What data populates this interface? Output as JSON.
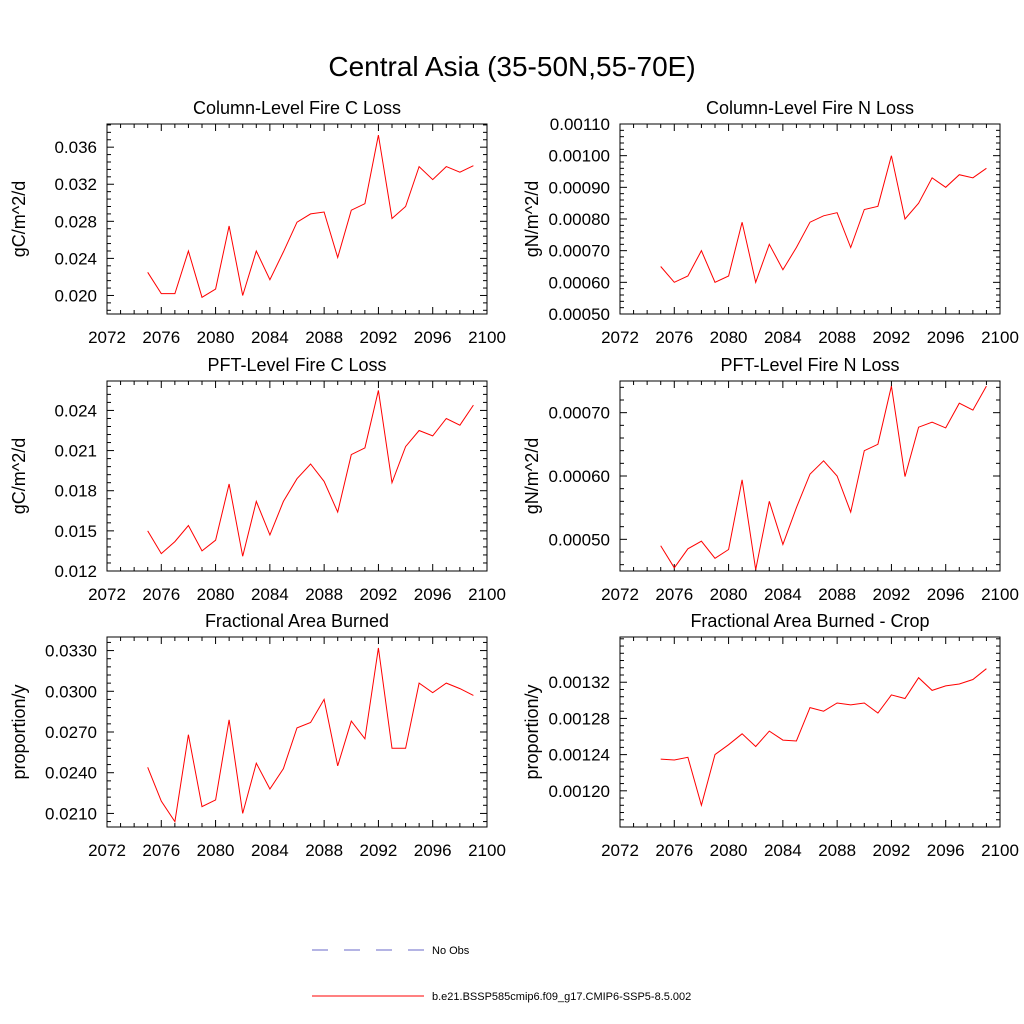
{
  "figure": {
    "title": "Central Asia (35-50N,55-70E)"
  },
  "legend": {
    "entries": [
      {
        "label": "No Obs",
        "color": "#6a6ac8",
        "dash": true
      },
      {
        "label": "b.e21.BSSP585cmip6.f09_g17.CMIP6-SSP5-8.5.002",
        "color": "#ff0000",
        "dash": false
      }
    ]
  },
  "chart_data": [
    {
      "type": "line",
      "title": "Column-Level Fire C Loss",
      "ylabel": "gC/m^2/d",
      "xlabel": "",
      "xlim": [
        2072,
        2100
      ],
      "ylim": [
        0.018,
        0.0385
      ],
      "xticks": [
        "2072",
        "2076",
        "2080",
        "2084",
        "2088",
        "2092",
        "2096",
        "2100"
      ],
      "yticks": [
        "0.020",
        "0.024",
        "0.028",
        "0.032",
        "0.036"
      ],
      "x": [
        2075,
        2076,
        2077,
        2078,
        2079,
        2080,
        2081,
        2082,
        2083,
        2084,
        2085,
        2086,
        2087,
        2088,
        2089,
        2090,
        2091,
        2092,
        2093,
        2094,
        2095,
        2096,
        2097,
        2098,
        2099
      ],
      "series": [
        {
          "color": "#ff0000",
          "values": [
            0.0225,
            0.0202,
            0.0202,
            0.0248,
            0.0198,
            0.0207,
            0.0275,
            0.02,
            0.0248,
            0.0217,
            0.0247,
            0.0279,
            0.0288,
            0.029,
            0.0241,
            0.0292,
            0.0299,
            0.0373,
            0.0283,
            0.0296,
            0.0339,
            0.0325,
            0.0339,
            0.0333,
            0.034
          ]
        }
      ]
    },
    {
      "type": "line",
      "title": "Column-Level Fire N Loss",
      "ylabel": "gN/m^2/d",
      "xlabel": "",
      "xlim": [
        2072,
        2100
      ],
      "ylim": [
        0.0005,
        0.0011
      ],
      "xticks": [
        "2072",
        "2076",
        "2080",
        "2084",
        "2088",
        "2092",
        "2096",
        "2100"
      ],
      "yticks": [
        "0.00050",
        "0.00060",
        "0.00070",
        "0.00080",
        "0.00090",
        "0.00100",
        "0.00110"
      ],
      "x": [
        2075,
        2076,
        2077,
        2078,
        2079,
        2080,
        2081,
        2082,
        2083,
        2084,
        2085,
        2086,
        2087,
        2088,
        2089,
        2090,
        2091,
        2092,
        2093,
        2094,
        2095,
        2096,
        2097,
        2098,
        2099
      ],
      "series": [
        {
          "color": "#ff0000",
          "values": [
            0.00065,
            0.0006,
            0.00062,
            0.0007,
            0.0006,
            0.00062,
            0.00079,
            0.0006,
            0.00072,
            0.00064,
            0.00071,
            0.00079,
            0.00081,
            0.00082,
            0.00071,
            0.00083,
            0.00084,
            0.001,
            0.0008,
            0.00085,
            0.00093,
            0.0009,
            0.00094,
            0.00093,
            0.00096
          ]
        }
      ]
    },
    {
      "type": "line",
      "title": "PFT-Level Fire C Loss",
      "ylabel": "gC/m^2/d",
      "xlabel": "",
      "xlim": [
        2072,
        2100
      ],
      "ylim": [
        0.012,
        0.0262
      ],
      "xticks": [
        "2072",
        "2076",
        "2080",
        "2084",
        "2088",
        "2092",
        "2096",
        "2100"
      ],
      "yticks": [
        "0.012",
        "0.015",
        "0.018",
        "0.021",
        "0.024"
      ],
      "x": [
        2075,
        2076,
        2077,
        2078,
        2079,
        2080,
        2081,
        2082,
        2083,
        2084,
        2085,
        2086,
        2087,
        2088,
        2089,
        2090,
        2091,
        2092,
        2093,
        2094,
        2095,
        2096,
        2097,
        2098,
        2099
      ],
      "series": [
        {
          "color": "#ff0000",
          "values": [
            0.015,
            0.0133,
            0.0142,
            0.0154,
            0.0135,
            0.0143,
            0.0185,
            0.0131,
            0.0172,
            0.0147,
            0.0172,
            0.0189,
            0.02,
            0.0187,
            0.0164,
            0.0207,
            0.0212,
            0.0255,
            0.0186,
            0.0213,
            0.0225,
            0.0221,
            0.0234,
            0.0229,
            0.0244
          ]
        }
      ]
    },
    {
      "type": "line",
      "title": "PFT-Level Fire N Loss",
      "ylabel": "gN/m^2/d",
      "xlabel": "",
      "xlim": [
        2072,
        2100
      ],
      "ylim": [
        0.00045,
        0.00075
      ],
      "xticks": [
        "2072",
        "2076",
        "2080",
        "2084",
        "2088",
        "2092",
        "2096",
        "2100"
      ],
      "yticks": [
        "0.00050",
        "0.00060",
        "0.00070"
      ],
      "x": [
        2075,
        2076,
        2077,
        2078,
        2079,
        2080,
        2081,
        2082,
        2083,
        2084,
        2085,
        2086,
        2087,
        2088,
        2089,
        2090,
        2091,
        2092,
        2093,
        2094,
        2095,
        2096,
        2097,
        2098,
        2099
      ],
      "series": [
        {
          "color": "#ff0000",
          "values": [
            0.00049,
            0.000455,
            0.000485,
            0.000497,
            0.00047,
            0.000484,
            0.000594,
            0.000452,
            0.00056,
            0.000492,
            0.00055,
            0.000603,
            0.000624,
            0.0006,
            0.000543,
            0.00064,
            0.00065,
            0.000742,
            0.000599,
            0.000677,
            0.000685,
            0.000676,
            0.000715,
            0.000704,
            0.000742
          ]
        }
      ]
    },
    {
      "type": "line",
      "title": "Fractional Area Burned",
      "ylabel": "proportion/y",
      "xlabel": "",
      "xlim": [
        2072,
        2100
      ],
      "ylim": [
        0.02,
        0.034
      ],
      "xticks": [
        "2072",
        "2076",
        "2080",
        "2084",
        "2088",
        "2092",
        "2096",
        "2100"
      ],
      "yticks": [
        "0.0210",
        "0.0240",
        "0.0270",
        "0.0300",
        "0.0330"
      ],
      "x": [
        2075,
        2076,
        2077,
        2078,
        2079,
        2080,
        2081,
        2082,
        2083,
        2084,
        2085,
        2086,
        2087,
        2088,
        2089,
        2090,
        2091,
        2092,
        2093,
        2094,
        2095,
        2096,
        2097,
        2098,
        2099
      ],
      "series": [
        {
          "color": "#ff0000",
          "values": [
            0.0244,
            0.0219,
            0.0204,
            0.0268,
            0.0215,
            0.022,
            0.0279,
            0.021,
            0.0247,
            0.0228,
            0.0243,
            0.0273,
            0.0277,
            0.0294,
            0.0245,
            0.0278,
            0.0265,
            0.0332,
            0.0258,
            0.0258,
            0.0306,
            0.0299,
            0.0306,
            0.0302,
            0.0297
          ]
        }
      ]
    },
    {
      "type": "line",
      "title": "Fractional Area Burned - Crop",
      "ylabel": "proportion/y",
      "xlabel": "",
      "xlim": [
        2072,
        2100
      ],
      "ylim": [
        0.00116,
        0.00137
      ],
      "xticks": [
        "2072",
        "2076",
        "2080",
        "2084",
        "2088",
        "2092",
        "2096",
        "2100"
      ],
      "yticks": [
        "0.00120",
        "0.00124",
        "0.00128",
        "0.00132"
      ],
      "x": [
        2075,
        2076,
        2077,
        2078,
        2079,
        2080,
        2081,
        2082,
        2083,
        2084,
        2085,
        2086,
        2087,
        2088,
        2089,
        2090,
        2091,
        2092,
        2093,
        2094,
        2095,
        2096,
        2097,
        2098,
        2099
      ],
      "series": [
        {
          "color": "#ff0000",
          "values": [
            0.001235,
            0.001234,
            0.001237,
            0.001184,
            0.00124,
            0.001251,
            0.001263,
            0.001249,
            0.001266,
            0.001256,
            0.001255,
            0.001292,
            0.001288,
            0.001297,
            0.001295,
            0.001297,
            0.001286,
            0.001306,
            0.001302,
            0.001325,
            0.001311,
            0.001316,
            0.001318,
            0.001323,
            0.001335
          ]
        }
      ]
    }
  ]
}
